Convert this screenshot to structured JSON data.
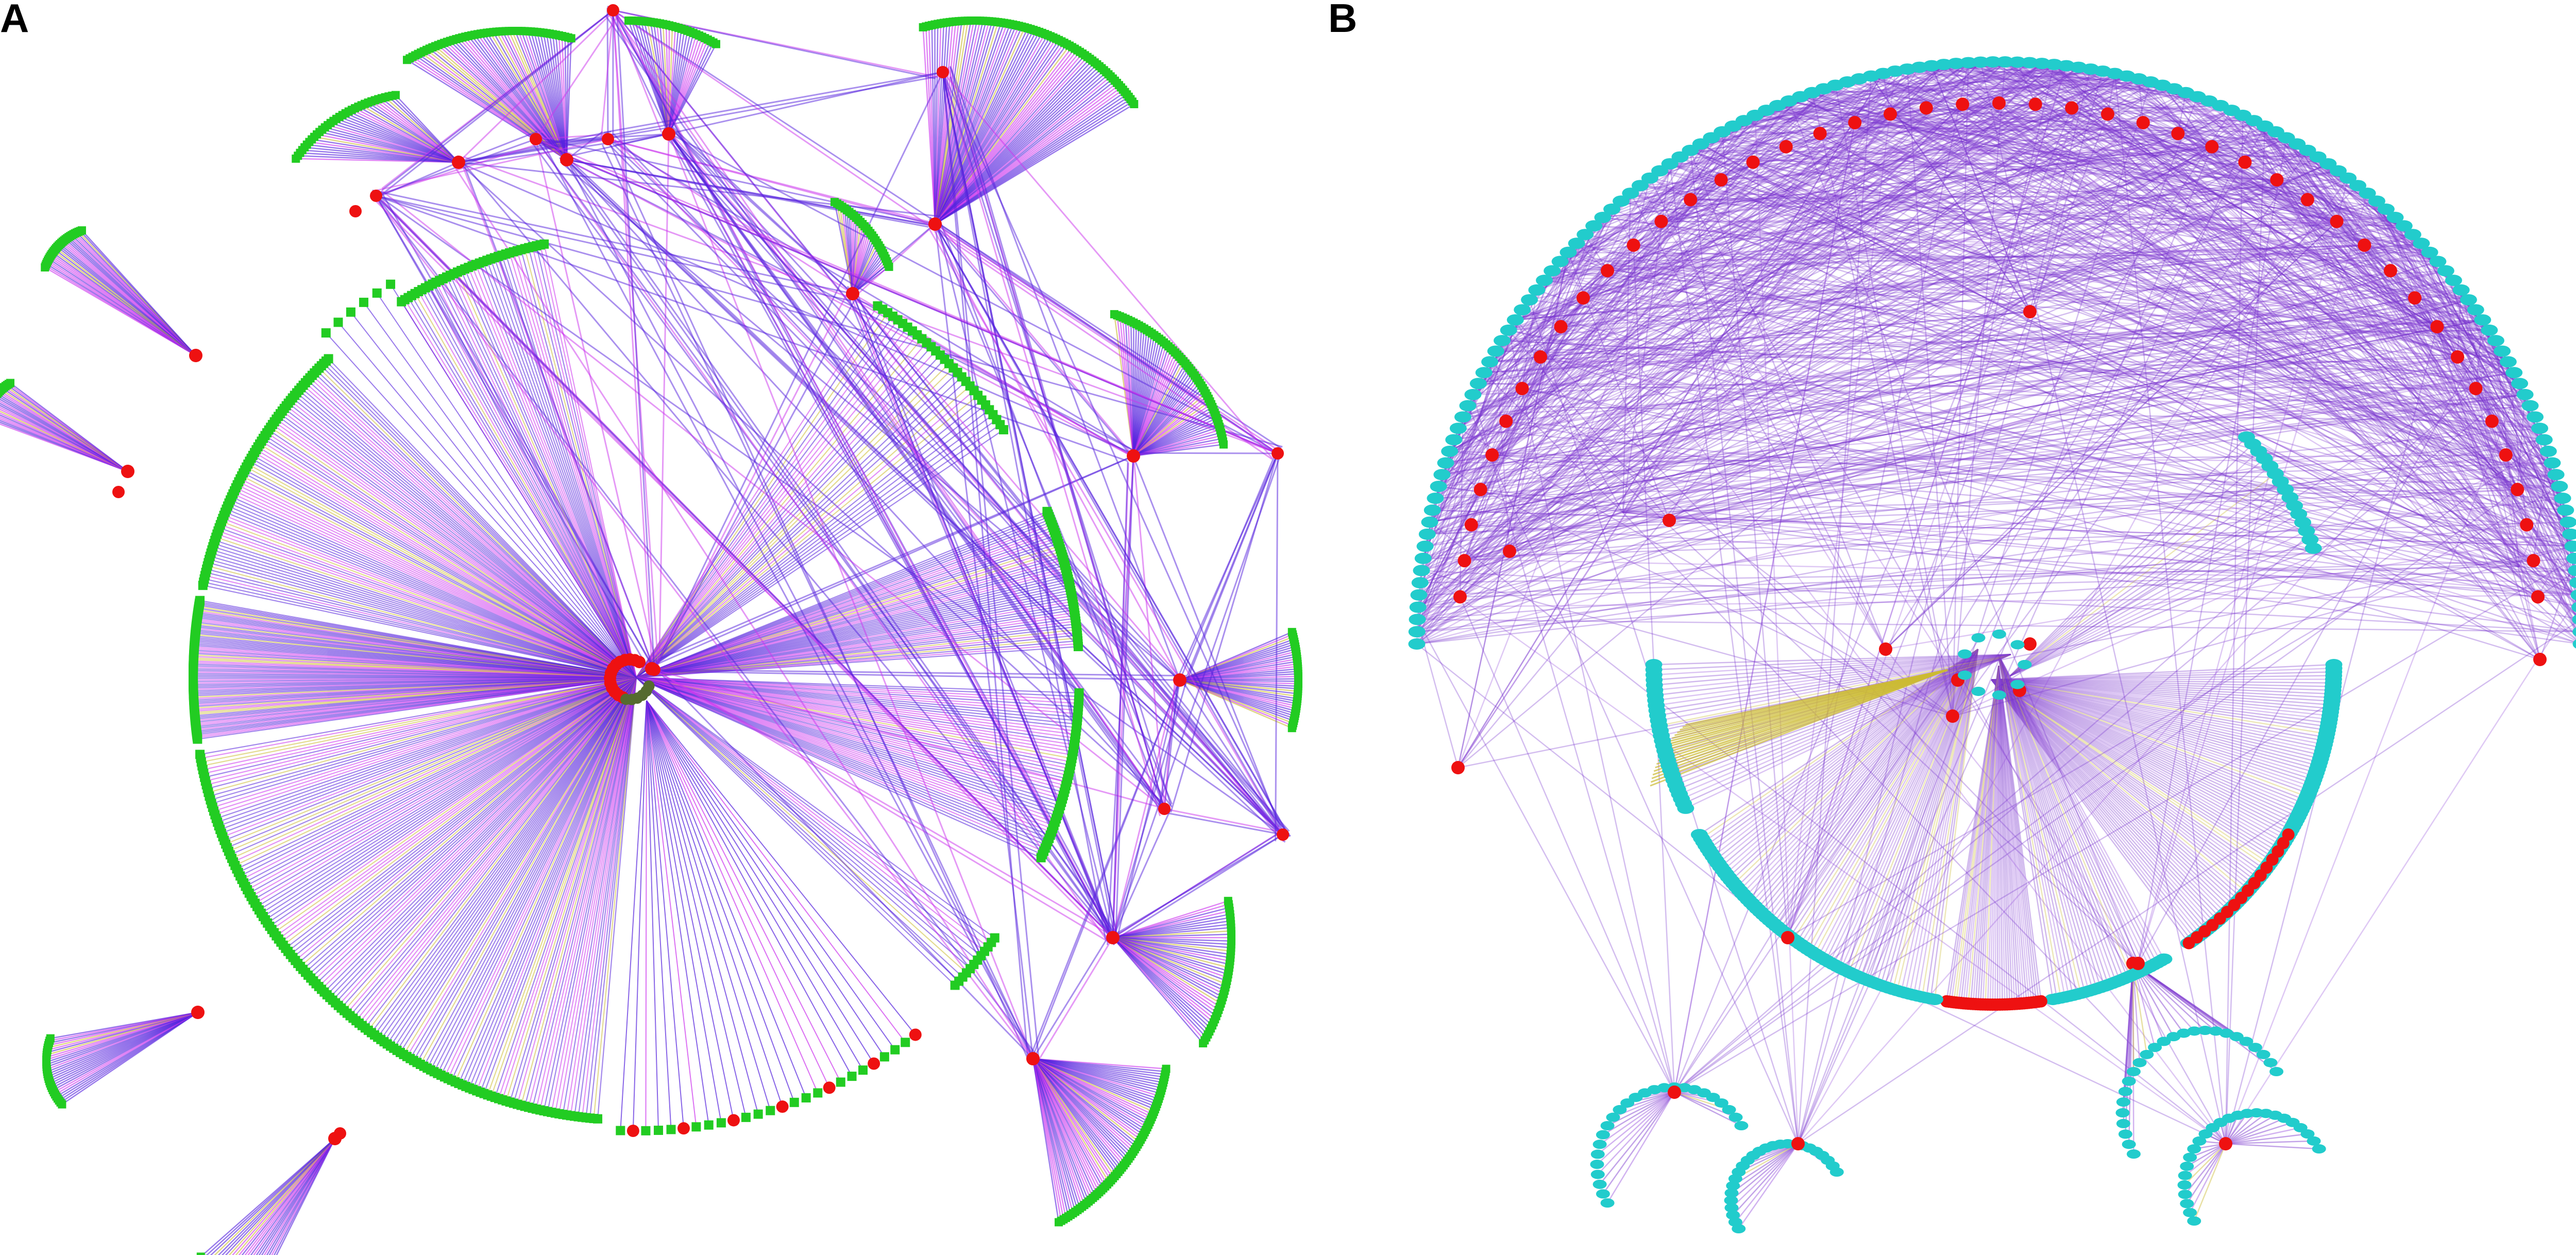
{
  "figure": {
    "panels": [
      {
        "label": "A",
        "colors": {
          "node_leaf": "#22cc22",
          "node_hub": "#ee1111",
          "edge_primary": "#5522dd",
          "edge_secondary": "#cc33ee",
          "edge_tertiary": "#ccbb33"
        }
      },
      {
        "label": "B",
        "colors": {
          "node_leaf": "#22cccc",
          "node_hub": "#ee1111",
          "edge_primary": "#7733cc",
          "edge_secondary": "#9955dd",
          "edge_tertiary": "#ccbb33"
        }
      }
    ]
  }
}
